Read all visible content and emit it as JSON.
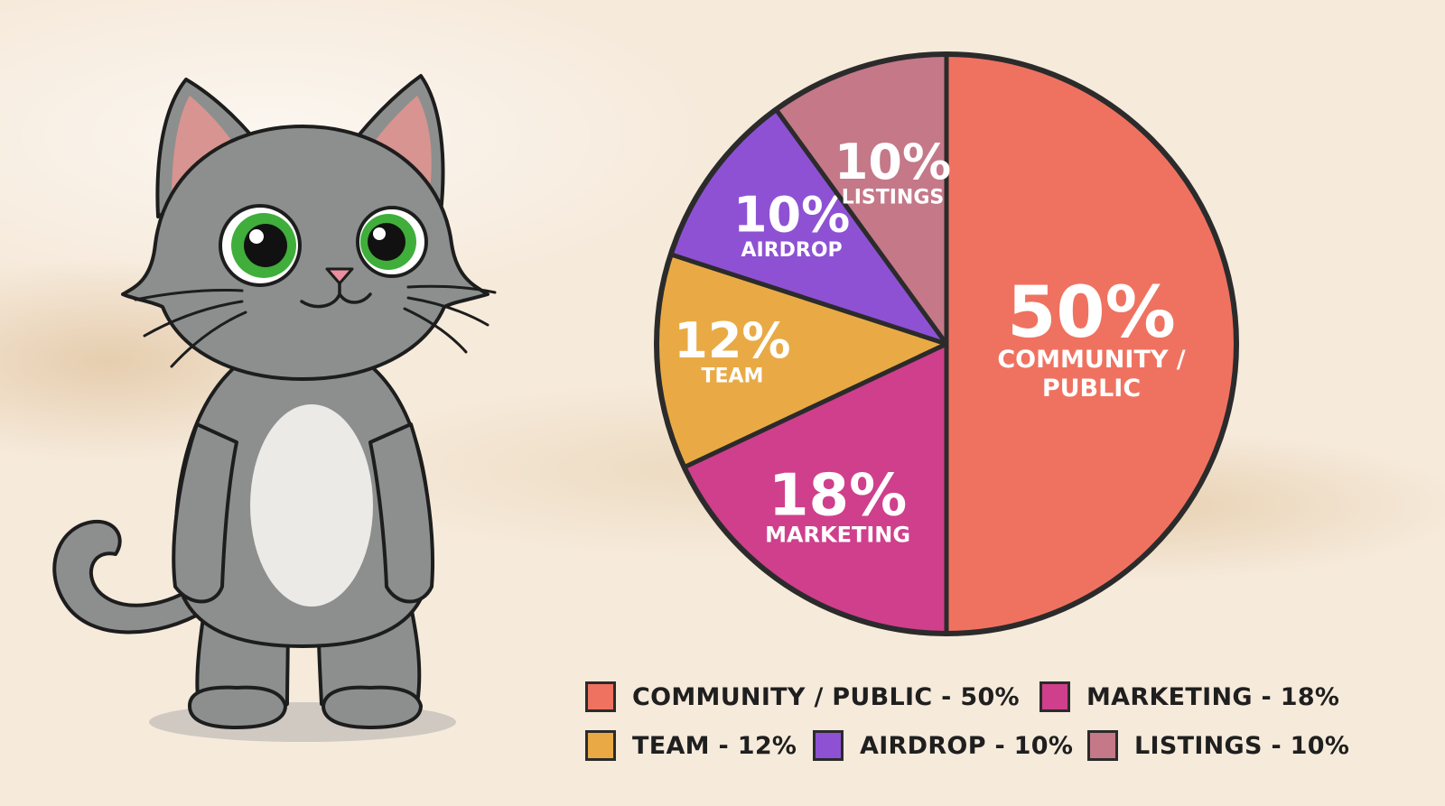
{
  "chart_data": {
    "type": "pie",
    "start": "top, clockwise",
    "slices": [
      {
        "label": "COMMUNITY / PUBLIC",
        "value": 50,
        "pct_text": "50%",
        "name_lines": [
          "COMMUNITY /",
          "PUBLIC"
        ],
        "color": "#ef7260"
      },
      {
        "label": "MARKETING",
        "value": 18,
        "pct_text": "18%",
        "name_lines": [
          "MARKETING"
        ],
        "color": "#cf3f8c"
      },
      {
        "label": "TEAM",
        "value": 12,
        "pct_text": "12%",
        "name_lines": [
          "TEAM"
        ],
        "color": "#e9aa45"
      },
      {
        "label": "AIRDROP",
        "value": 10,
        "pct_text": "10%",
        "name_lines": [
          "AIRDROP"
        ],
        "color": "#8e51d4"
      },
      {
        "label": "LISTINGS",
        "value": 10,
        "pct_text": "10%",
        "name_lines": [
          "LISTINGS"
        ],
        "color": "#c47888"
      }
    ],
    "legend": [
      {
        "text": "COMMUNITY / PUBLIC - 50%",
        "color": "#ef7260"
      },
      {
        "text": "MARKETING - 18%",
        "color": "#cf3f8c"
      },
      {
        "text": "TEAM - 12%",
        "color": "#e9aa45"
      },
      {
        "text": "AIRDROP - 10%",
        "color": "#8e51d4"
      },
      {
        "text": "LISTINGS - 10%",
        "color": "#c47888"
      }
    ],
    "legend_placement": "bottom"
  },
  "illustration": {
    "subject": "cartoon-gray-cat",
    "colors": {
      "fur": "#8c8f8e",
      "belly": "#ebeae6",
      "ear_inner": "#d89490",
      "eyes": "#3fae3a",
      "nose": "#e98fa0",
      "outline": "#1d1d1d"
    }
  }
}
